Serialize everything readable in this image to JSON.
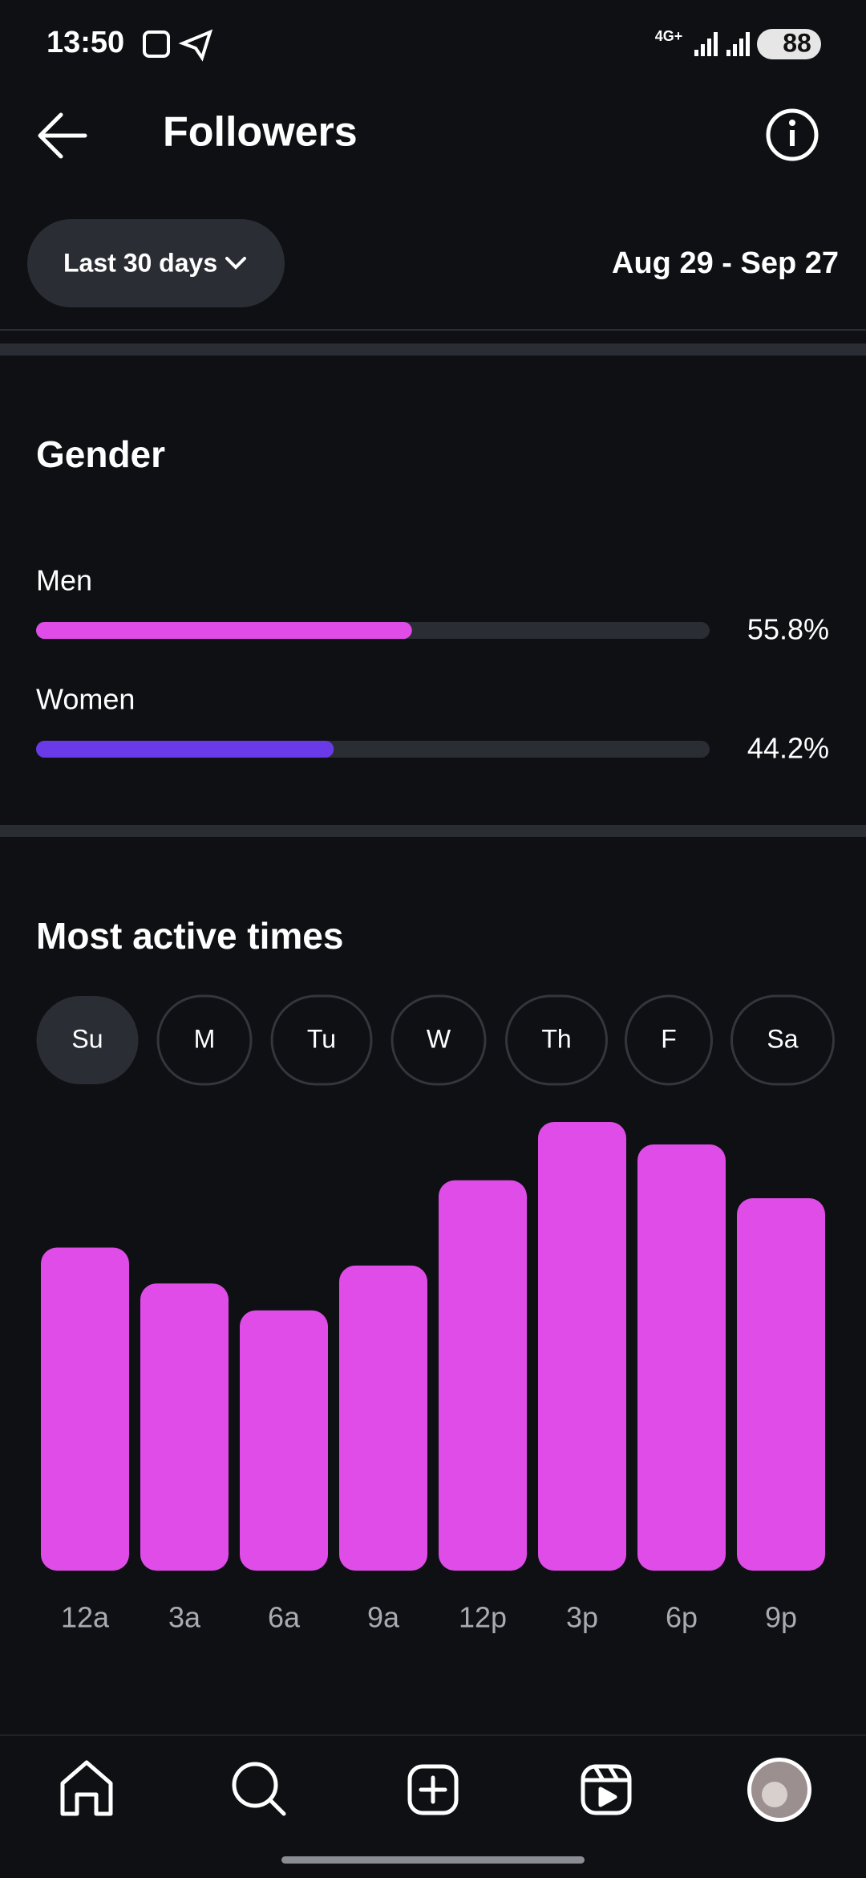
{
  "status_bar": {
    "time": "13:50",
    "network": "4G+",
    "battery": "88"
  },
  "header": {
    "title": "Followers"
  },
  "filter": {
    "range": "Last 30 days",
    "dates": "Aug 29 - Sep 27"
  },
  "gender": {
    "title": "Gender",
    "categories": [
      "Men",
      "Women"
    ],
    "values": [
      55.8,
      44.2
    ],
    "value_labels": [
      "55.8%",
      "44.2%"
    ],
    "colors": [
      "#e04ce8",
      "#6a3ae8"
    ],
    "xlim": [
      0,
      100
    ]
  },
  "active_times": {
    "title": "Most active times",
    "days": [
      "Su",
      "M",
      "Tu",
      "W",
      "Th",
      "F",
      "Sa"
    ],
    "selected_day": 0,
    "chart": {
      "type": "bar",
      "categories": [
        "12a",
        "3a",
        "6a",
        "9a",
        "12p",
        "3p",
        "6p",
        "9p"
      ],
      "values": [
        72,
        64,
        58,
        68,
        87,
        100,
        95,
        83
      ],
      "ylim": [
        0,
        100
      ],
      "color": "#e04ce8"
    }
  }
}
